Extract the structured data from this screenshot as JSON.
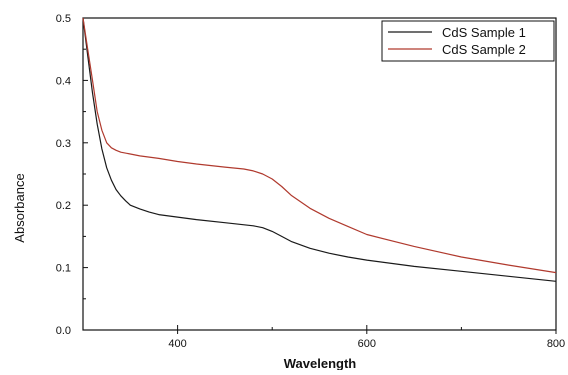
{
  "chart_data": {
    "type": "line",
    "title": "",
    "xlabel": "Wavelength",
    "ylabel": "Absorbance",
    "xlim": [
      300,
      800
    ],
    "ylim": [
      0.0,
      0.5
    ],
    "x_ticks": [
      "400",
      "600",
      "800"
    ],
    "y_ticks": [
      "0.0",
      "0.1",
      "0.2",
      "0.3",
      "0.4",
      "0.5"
    ],
    "grid": false,
    "legend_position": "top-right",
    "series": [
      {
        "name": "CdS Sample 1",
        "color": "#1a1a1a",
        "x": [
          300,
          305,
          310,
          315,
          320,
          325,
          330,
          335,
          340,
          345,
          350,
          360,
          370,
          380,
          400,
          420,
          450,
          480,
          490,
          500,
          510,
          520,
          540,
          560,
          580,
          600,
          650,
          700,
          750,
          800
        ],
        "y": [
          0.5,
          0.44,
          0.38,
          0.33,
          0.29,
          0.26,
          0.24,
          0.225,
          0.215,
          0.207,
          0.2,
          0.194,
          0.189,
          0.185,
          0.181,
          0.177,
          0.172,
          0.167,
          0.164,
          0.158,
          0.15,
          0.142,
          0.131,
          0.123,
          0.117,
          0.112,
          0.102,
          0.094,
          0.086,
          0.078
        ]
      },
      {
        "name": "CdS Sample 2",
        "color": "#b03a2e",
        "x": [
          300,
          305,
          310,
          315,
          320,
          325,
          330,
          335,
          340,
          350,
          360,
          380,
          400,
          420,
          450,
          470,
          480,
          490,
          500,
          510,
          520,
          540,
          560,
          580,
          600,
          650,
          700,
          750,
          800
        ],
        "y": [
          0.5,
          0.45,
          0.4,
          0.35,
          0.32,
          0.3,
          0.292,
          0.288,
          0.285,
          0.282,
          0.279,
          0.275,
          0.27,
          0.266,
          0.261,
          0.258,
          0.255,
          0.25,
          0.242,
          0.23,
          0.216,
          0.195,
          0.179,
          0.166,
          0.153,
          0.134,
          0.117,
          0.104,
          0.092
        ]
      }
    ]
  }
}
